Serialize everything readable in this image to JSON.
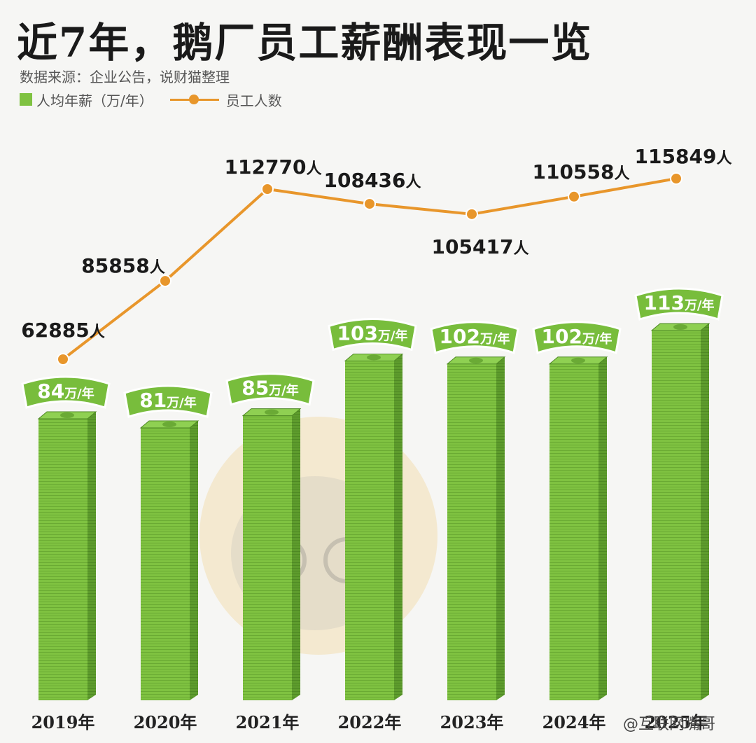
{
  "header": {
    "title": "近7年，鹅厂员工薪酬表现一览",
    "source": "数据来源：企业公告，说财猫整理",
    "legend_bar": "人均年薪（万/年）",
    "legend_line": "员工人数"
  },
  "watermark": "@互联网嘴哥",
  "colors": {
    "bar": "#7fc241",
    "bar_dark": "#5a9a2a",
    "line": "#e8962b",
    "label_banner": "#78bd3c"
  },
  "chart_data": {
    "type": "bar",
    "categories": [
      "2019年",
      "2020年",
      "2021年",
      "2022年",
      "2023年",
      "2024年",
      "2025年"
    ],
    "series": [
      {
        "name": "人均年薪（万/年）",
        "type": "bar",
        "values": [
          84,
          81,
          85,
          103,
          102,
          102,
          113
        ],
        "labels": [
          "84",
          "81",
          "85",
          "103",
          "102",
          "102",
          "113"
        ],
        "unit": "万/年"
      },
      {
        "name": "员工人数",
        "type": "line",
        "values": [
          62885,
          85858,
          112770,
          108436,
          105417,
          110558,
          115849
        ],
        "labels": [
          "62885",
          "85858",
          "112770",
          "108436",
          "105417",
          "110558",
          "115849"
        ],
        "unit": "人"
      }
    ],
    "legend_position": "top-left",
    "grid": false
  }
}
